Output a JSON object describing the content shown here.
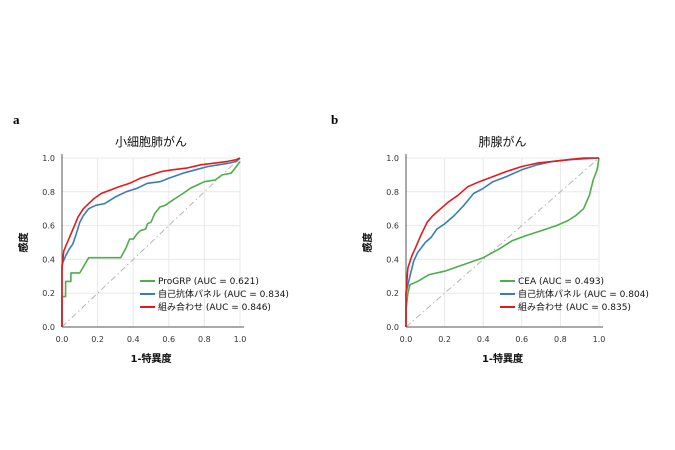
{
  "panel_labels": [
    "a",
    "b"
  ],
  "chart_data": [
    {
      "type": "line",
      "title": "小細胞肺がん",
      "xlabel": "1-特異度",
      "ylabel": "感度",
      "xlim": [
        0,
        1
      ],
      "ylim": [
        0,
        1
      ],
      "ticks": [
        "0.0",
        "0.2",
        "0.4",
        "0.6",
        "0.8",
        "1.0"
      ],
      "grid": true,
      "diagonal": true,
      "legend_position": "bottom-right",
      "series": [
        {
          "name": "ProGRP (AUC = 0.621)",
          "color": "#4daf4a",
          "points": [
            [
              0,
              0
            ],
            [
              0,
              0.18
            ],
            [
              0.02,
              0.18
            ],
            [
              0.02,
              0.27
            ],
            [
              0.05,
              0.27
            ],
            [
              0.05,
              0.32
            ],
            [
              0.1,
              0.32
            ],
            [
              0.15,
              0.41
            ],
            [
              0.33,
              0.41
            ],
            [
              0.36,
              0.47
            ],
            [
              0.38,
              0.52
            ],
            [
              0.4,
              0.52
            ],
            [
              0.42,
              0.55
            ],
            [
              0.44,
              0.57
            ],
            [
              0.47,
              0.58
            ],
            [
              0.48,
              0.61
            ],
            [
              0.5,
              0.62
            ],
            [
              0.52,
              0.67
            ],
            [
              0.55,
              0.71
            ],
            [
              0.58,
              0.72
            ],
            [
              0.62,
              0.75
            ],
            [
              0.68,
              0.79
            ],
            [
              0.72,
              0.82
            ],
            [
              0.76,
              0.84
            ],
            [
              0.8,
              0.86
            ],
            [
              0.86,
              0.87
            ],
            [
              0.9,
              0.9
            ],
            [
              0.95,
              0.91
            ],
            [
              0.98,
              0.95
            ],
            [
              1,
              0.98
            ]
          ]
        },
        {
          "name": "自己抗体パネル (AUC = 0.834)",
          "color": "#377eb8",
          "points": [
            [
              0,
              0
            ],
            [
              0,
              0.37
            ],
            [
              0.02,
              0.42
            ],
            [
              0.04,
              0.46
            ],
            [
              0.06,
              0.49
            ],
            [
              0.08,
              0.55
            ],
            [
              0.1,
              0.62
            ],
            [
              0.12,
              0.66
            ],
            [
              0.15,
              0.7
            ],
            [
              0.19,
              0.72
            ],
            [
              0.24,
              0.73
            ],
            [
              0.3,
              0.77
            ],
            [
              0.36,
              0.8
            ],
            [
              0.42,
              0.82
            ],
            [
              0.48,
              0.85
            ],
            [
              0.55,
              0.86
            ],
            [
              0.6,
              0.88
            ],
            [
              0.68,
              0.91
            ],
            [
              0.75,
              0.93
            ],
            [
              0.82,
              0.95
            ],
            [
              0.88,
              0.96
            ],
            [
              0.94,
              0.97
            ],
            [
              0.98,
              0.98
            ],
            [
              1,
              1
            ]
          ]
        },
        {
          "name": "組み合わせ (AUC = 0.846)",
          "color": "#e41a1c",
          "points": [
            [
              0,
              0
            ],
            [
              0,
              0.35
            ],
            [
              0.01,
              0.45
            ],
            [
              0.03,
              0.5
            ],
            [
              0.05,
              0.55
            ],
            [
              0.07,
              0.6
            ],
            [
              0.09,
              0.65
            ],
            [
              0.12,
              0.7
            ],
            [
              0.15,
              0.73
            ],
            [
              0.18,
              0.76
            ],
            [
              0.22,
              0.79
            ],
            [
              0.27,
              0.81
            ],
            [
              0.32,
              0.83
            ],
            [
              0.38,
              0.85
            ],
            [
              0.44,
              0.88
            ],
            [
              0.5,
              0.9
            ],
            [
              0.56,
              0.92
            ],
            [
              0.62,
              0.93
            ],
            [
              0.7,
              0.94
            ],
            [
              0.78,
              0.96
            ],
            [
              0.86,
              0.97
            ],
            [
              0.93,
              0.98
            ],
            [
              0.98,
              0.99
            ],
            [
              1,
              1
            ]
          ]
        }
      ]
    },
    {
      "type": "line",
      "title": "肺腺がん",
      "xlabel": "1-特異度",
      "ylabel": "感度",
      "xlim": [
        0,
        1
      ],
      "ylim": [
        0,
        1
      ],
      "ticks": [
        "0.0",
        "0.2",
        "0.4",
        "0.6",
        "0.8",
        "1.0"
      ],
      "grid": true,
      "diagonal": true,
      "legend_position": "bottom-right",
      "series": [
        {
          "name": "CEA (AUC = 0.493)",
          "color": "#4daf4a",
          "points": [
            [
              0,
              0
            ],
            [
              0,
              0.1
            ],
            [
              0.01,
              0.2
            ],
            [
              0.02,
              0.25
            ],
            [
              0.06,
              0.27
            ],
            [
              0.12,
              0.31
            ],
            [
              0.2,
              0.33
            ],
            [
              0.3,
              0.37
            ],
            [
              0.4,
              0.41
            ],
            [
              0.48,
              0.46
            ],
            [
              0.55,
              0.51
            ],
            [
              0.62,
              0.54
            ],
            [
              0.7,
              0.57
            ],
            [
              0.78,
              0.6
            ],
            [
              0.84,
              0.63
            ],
            [
              0.88,
              0.66
            ],
            [
              0.92,
              0.7
            ],
            [
              0.95,
              0.78
            ],
            [
              0.97,
              0.87
            ],
            [
              0.99,
              0.93
            ],
            [
              1,
              1
            ]
          ]
        },
        {
          "name": "自己抗体パネル (AUC = 0.804)",
          "color": "#377eb8",
          "points": [
            [
              0,
              0
            ],
            [
              0,
              0.2
            ],
            [
              0.02,
              0.3
            ],
            [
              0.04,
              0.39
            ],
            [
              0.06,
              0.44
            ],
            [
              0.1,
              0.5
            ],
            [
              0.13,
              0.53
            ],
            [
              0.16,
              0.58
            ],
            [
              0.2,
              0.61
            ],
            [
              0.25,
              0.66
            ],
            [
              0.3,
              0.72
            ],
            [
              0.35,
              0.79
            ],
            [
              0.4,
              0.82
            ],
            [
              0.45,
              0.86
            ],
            [
              0.52,
              0.89
            ],
            [
              0.6,
              0.93
            ],
            [
              0.68,
              0.96
            ],
            [
              0.76,
              0.98
            ],
            [
              0.85,
              0.99
            ],
            [
              1,
              1
            ]
          ]
        },
        {
          "name": "組み合わせ (AUC = 0.835)",
          "color": "#e41a1c",
          "points": [
            [
              0,
              0
            ],
            [
              0,
              0.2
            ],
            [
              0.01,
              0.35
            ],
            [
              0.03,
              0.42
            ],
            [
              0.05,
              0.47
            ],
            [
              0.08,
              0.55
            ],
            [
              0.11,
              0.62
            ],
            [
              0.14,
              0.66
            ],
            [
              0.18,
              0.7
            ],
            [
              0.22,
              0.74
            ],
            [
              0.27,
              0.78
            ],
            [
              0.32,
              0.83
            ],
            [
              0.38,
              0.86
            ],
            [
              0.45,
              0.89
            ],
            [
              0.52,
              0.92
            ],
            [
              0.6,
              0.95
            ],
            [
              0.68,
              0.97
            ],
            [
              0.76,
              0.98
            ],
            [
              0.84,
              0.99
            ],
            [
              0.92,
              1
            ],
            [
              1,
              1
            ]
          ]
        }
      ]
    }
  ]
}
